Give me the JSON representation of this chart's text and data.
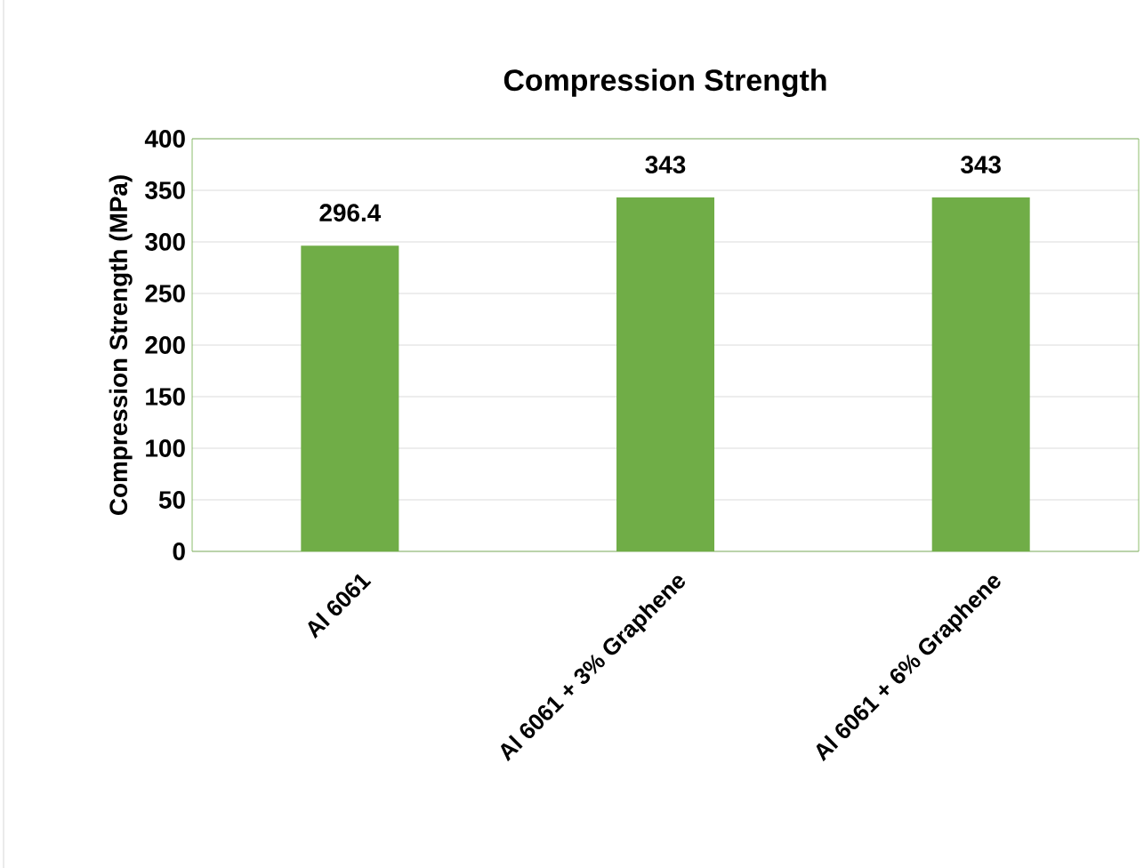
{
  "chart_data": {
    "type": "bar",
    "title": "Compression Strength",
    "ylabel": "Compression Strength (MPa)",
    "categories": [
      "Al 6061",
      "Al 6061 + 3% Graphene",
      "Al 6061 + 6% Graphene"
    ],
    "values": [
      296.4,
      343,
      343
    ],
    "color": "#70ad47",
    "ylim": [
      0,
      400
    ],
    "yticks": [
      0,
      50,
      100,
      150,
      200,
      250,
      300,
      350,
      400
    ],
    "grid": "y",
    "data_labels": true
  }
}
